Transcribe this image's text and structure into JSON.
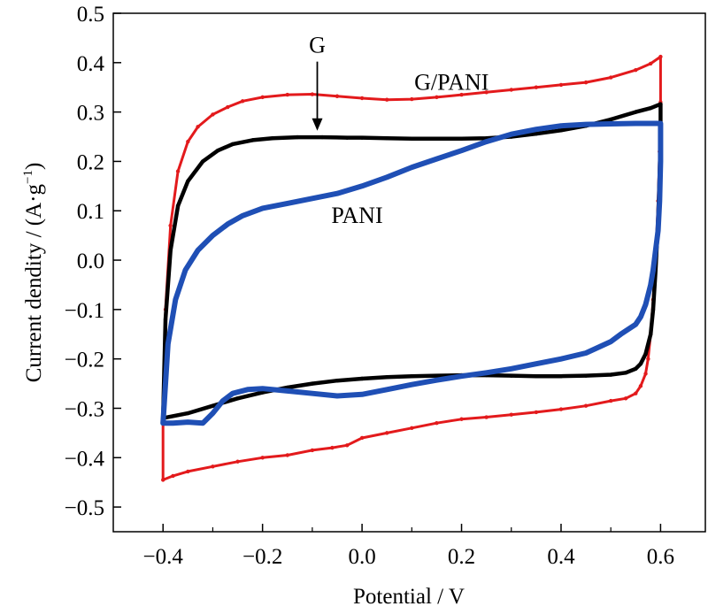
{
  "chart_data": {
    "type": "line",
    "xlabel": "Potential / V",
    "ylabel": "Current dendity / (A·g",
    "ylabel_sup": "−1",
    "ylabel_close": ")",
    "xlim": [
      -0.5,
      0.69
    ],
    "ylim": [
      -0.55,
      0.5
    ],
    "x_ticks": [
      -0.4,
      -0.2,
      0.0,
      0.2,
      0.4,
      0.6
    ],
    "x_tick_labels": [
      "−0.4",
      "−0.2",
      "0.0",
      "0.2",
      "0.4",
      "0.6"
    ],
    "y_ticks": [
      0.5,
      0.4,
      0.3,
      0.2,
      0.1,
      0.0,
      -0.1,
      -0.2,
      -0.3,
      -0.4,
      -0.5
    ],
    "y_tick_labels": [
      "0.5",
      "0.4",
      "0.3",
      "0.2",
      "0.1",
      "0.0",
      "−0.1",
      "−0.2",
      "−0.3",
      "−0.4",
      "−0.5"
    ],
    "grid": false,
    "annotations": [
      {
        "text": "G",
        "x": -0.09,
        "y": 0.42,
        "arrow_to": [
          -0.09,
          0.255
        ],
        "series": "G"
      },
      {
        "text": "G/PANI",
        "x": 0.18,
        "y": 0.345,
        "series": "G/PANI"
      },
      {
        "text": "PANI",
        "x": -0.01,
        "y": 0.075,
        "series": "PANI"
      }
    ],
    "series": [
      {
        "name": "G/PANI",
        "color": "#e31a1c",
        "x": [
          -0.4,
          -0.395,
          -0.385,
          -0.37,
          -0.35,
          -0.33,
          -0.3,
          -0.27,
          -0.24,
          -0.2,
          -0.15,
          -0.1,
          -0.05,
          0.0,
          0.05,
          0.1,
          0.15,
          0.2,
          0.25,
          0.3,
          0.35,
          0.4,
          0.45,
          0.5,
          0.55,
          0.58,
          0.6,
          0.6,
          0.598,
          0.595,
          0.59,
          0.585,
          0.58,
          0.575,
          0.57,
          0.56,
          0.55,
          0.53,
          0.5,
          0.45,
          0.4,
          0.35,
          0.3,
          0.25,
          0.2,
          0.15,
          0.1,
          0.05,
          0.0,
          -0.03,
          -0.06,
          -0.1,
          -0.15,
          -0.2,
          -0.25,
          -0.3,
          -0.35,
          -0.38,
          -0.4,
          -0.4
        ],
        "y": [
          -0.33,
          -0.1,
          0.07,
          0.18,
          0.24,
          0.27,
          0.295,
          0.31,
          0.322,
          0.33,
          0.335,
          0.336,
          0.332,
          0.328,
          0.325,
          0.326,
          0.33,
          0.335,
          0.34,
          0.345,
          0.35,
          0.355,
          0.36,
          0.37,
          0.385,
          0.398,
          0.412,
          0.32,
          0.22,
          0.12,
          0.0,
          -0.08,
          -0.15,
          -0.2,
          -0.23,
          -0.255,
          -0.27,
          -0.28,
          -0.285,
          -0.295,
          -0.302,
          -0.308,
          -0.313,
          -0.318,
          -0.322,
          -0.33,
          -0.34,
          -0.35,
          -0.36,
          -0.375,
          -0.38,
          -0.385,
          -0.395,
          -0.4,
          -0.408,
          -0.418,
          -0.428,
          -0.437,
          -0.445,
          -0.33
        ]
      },
      {
        "name": "G",
        "color": "#000000",
        "x": [
          -0.4,
          -0.395,
          -0.385,
          -0.37,
          -0.35,
          -0.32,
          -0.29,
          -0.26,
          -0.22,
          -0.18,
          -0.13,
          -0.08,
          -0.03,
          0.0,
          0.05,
          0.1,
          0.15,
          0.2,
          0.25,
          0.3,
          0.35,
          0.4,
          0.45,
          0.5,
          0.55,
          0.58,
          0.6,
          0.6,
          0.598,
          0.595,
          0.59,
          0.585,
          0.58,
          0.57,
          0.56,
          0.55,
          0.53,
          0.5,
          0.45,
          0.4,
          0.35,
          0.3,
          0.25,
          0.2,
          0.15,
          0.1,
          0.05,
          0.0,
          -0.05,
          -0.1,
          -0.15,
          -0.2,
          -0.25,
          -0.3,
          -0.35,
          -0.4
        ],
        "y": [
          -0.32,
          -0.12,
          0.02,
          0.11,
          0.16,
          0.2,
          0.222,
          0.235,
          0.243,
          0.247,
          0.249,
          0.249,
          0.248,
          0.248,
          0.247,
          0.246,
          0.246,
          0.246,
          0.247,
          0.25,
          0.256,
          0.263,
          0.272,
          0.285,
          0.3,
          0.308,
          0.316,
          0.25,
          0.17,
          0.08,
          -0.02,
          -0.1,
          -0.15,
          -0.19,
          -0.21,
          -0.22,
          -0.228,
          -0.232,
          -0.234,
          -0.235,
          -0.235,
          -0.234,
          -0.233,
          -0.233,
          -0.234,
          -0.235,
          -0.237,
          -0.24,
          -0.244,
          -0.25,
          -0.258,
          -0.268,
          -0.28,
          -0.295,
          -0.31,
          -0.32
        ]
      },
      {
        "name": "PANI",
        "color": "#1f4fb5",
        "x": [
          -0.4,
          -0.39,
          -0.375,
          -0.355,
          -0.33,
          -0.3,
          -0.27,
          -0.24,
          -0.2,
          -0.15,
          -0.1,
          -0.05,
          0.0,
          0.05,
          0.1,
          0.15,
          0.2,
          0.25,
          0.3,
          0.35,
          0.4,
          0.45,
          0.5,
          0.55,
          0.6,
          0.6,
          0.598,
          0.595,
          0.59,
          0.585,
          0.58,
          0.57,
          0.56,
          0.55,
          0.52,
          0.5,
          0.45,
          0.4,
          0.35,
          0.3,
          0.25,
          0.2,
          0.15,
          0.1,
          0.05,
          0.0,
          -0.05,
          -0.1,
          -0.15,
          -0.2,
          -0.23,
          -0.26,
          -0.28,
          -0.3,
          -0.32,
          -0.35,
          -0.38,
          -0.4
        ],
        "y": [
          -0.33,
          -0.17,
          -0.08,
          -0.02,
          0.02,
          0.05,
          0.073,
          0.09,
          0.105,
          0.115,
          0.125,
          0.135,
          0.15,
          0.168,
          0.188,
          0.205,
          0.222,
          0.24,
          0.255,
          0.265,
          0.272,
          0.275,
          0.276,
          0.277,
          0.277,
          0.2,
          0.12,
          0.06,
          0.02,
          -0.02,
          -0.05,
          -0.09,
          -0.115,
          -0.13,
          -0.15,
          -0.165,
          -0.188,
          -0.2,
          -0.21,
          -0.22,
          -0.228,
          -0.235,
          -0.243,
          -0.252,
          -0.262,
          -0.272,
          -0.275,
          -0.27,
          -0.265,
          -0.26,
          -0.262,
          -0.27,
          -0.285,
          -0.31,
          -0.33,
          -0.328,
          -0.33,
          -0.33
        ]
      }
    ]
  }
}
